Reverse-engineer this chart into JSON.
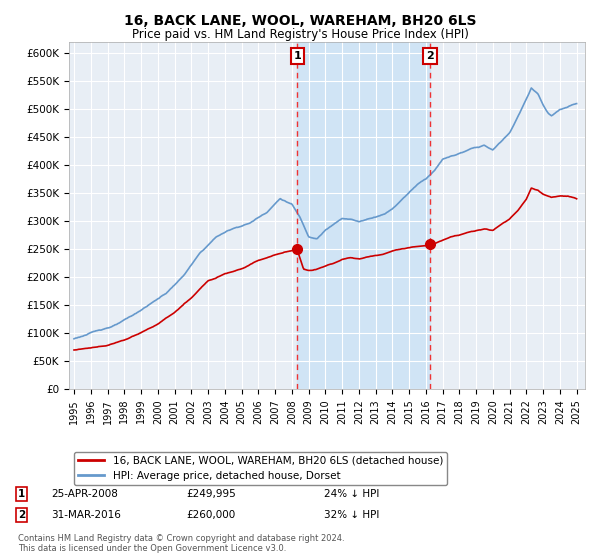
{
  "title": "16, BACK LANE, WOOL, WAREHAM, BH20 6LS",
  "subtitle": "Price paid vs. HM Land Registry's House Price Index (HPI)",
  "ylim": [
    0,
    620000
  ],
  "yticks": [
    0,
    50000,
    100000,
    150000,
    200000,
    250000,
    300000,
    350000,
    400000,
    450000,
    500000,
    550000,
    600000
  ],
  "ytick_labels": [
    "£0",
    "£50K",
    "£100K",
    "£150K",
    "£200K",
    "£250K",
    "£300K",
    "£350K",
    "£400K",
    "£450K",
    "£500K",
    "£550K",
    "£600K"
  ],
  "red_line_color": "#cc0000",
  "blue_line_color": "#6699cc",
  "plot_bg_color": "#e8eef5",
  "highlight_color": "#d0e4f5",
  "vline_color": "#ee3333",
  "annotation_box_color": "#cc0000",
  "sale1_date_x": 2008.32,
  "sale1_price": 249995,
  "sale2_date_x": 2016.25,
  "sale2_price": 260000,
  "xlim_left": 1994.7,
  "xlim_right": 2025.5,
  "legend_red_label": "16, BACK LANE, WOOL, WAREHAM, BH20 6LS (detached house)",
  "legend_blue_label": "HPI: Average price, detached house, Dorset",
  "footer": "Contains HM Land Registry data © Crown copyright and database right 2024.\nThis data is licensed under the Open Government Licence v3.0."
}
